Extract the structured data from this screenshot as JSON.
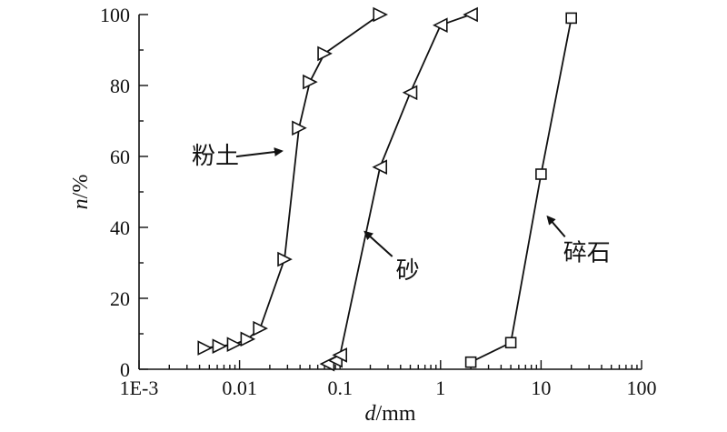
{
  "chart_data": {
    "type": "line",
    "xscale": "log",
    "xlim": [
      0.001,
      100
    ],
    "ylim": [
      0,
      100
    ],
    "xlabel": {
      "italic": "d",
      "unit": "/mm"
    },
    "ylabel": {
      "italic": "n",
      "unit": "/%"
    },
    "xtick_labels": [
      {
        "value": 0.001,
        "label": "1E-3"
      },
      {
        "value": 0.01,
        "label": "0.01"
      },
      {
        "value": 0.1,
        "label": "0.1"
      },
      {
        "value": 1,
        "label": "1"
      },
      {
        "value": 10,
        "label": "10"
      },
      {
        "value": 100,
        "label": "100"
      }
    ],
    "ytick_labels": [
      {
        "value": 0,
        "label": "0"
      },
      {
        "value": 20,
        "label": "20"
      },
      {
        "value": 40,
        "label": "40"
      },
      {
        "value": 60,
        "label": "60"
      },
      {
        "value": 80,
        "label": "80"
      },
      {
        "value": 100,
        "label": "100"
      }
    ],
    "series": [
      {
        "name": "粉土",
        "marker": "triangle-right",
        "x": [
          0.0045,
          0.0063,
          0.0088,
          0.012,
          0.016,
          0.028,
          0.039,
          0.05,
          0.07,
          0.25
        ],
        "y": [
          6,
          6.5,
          7,
          8.5,
          11.5,
          31,
          68,
          81,
          89,
          100
        ]
      },
      {
        "name": "砂",
        "marker": "triangle-left",
        "x": [
          0.075,
          0.09,
          0.1,
          0.25,
          0.5,
          1,
          2
        ],
        "y": [
          1.5,
          2.5,
          4,
          57,
          78,
          97,
          100
        ]
      },
      {
        "name": "碎石",
        "marker": "square",
        "x": [
          2,
          5,
          10,
          20
        ],
        "y": [
          2,
          7.5,
          55,
          99
        ]
      }
    ],
    "annotations": [
      {
        "text": "粉土",
        "series": "粉土",
        "point": [
          0.031,
          61
        ]
      },
      {
        "text": "砂",
        "series": "砂",
        "point": [
          0.15,
          40
        ]
      },
      {
        "text": "碎石",
        "series": "碎石",
        "point": [
          10.5,
          44
        ]
      }
    ]
  }
}
